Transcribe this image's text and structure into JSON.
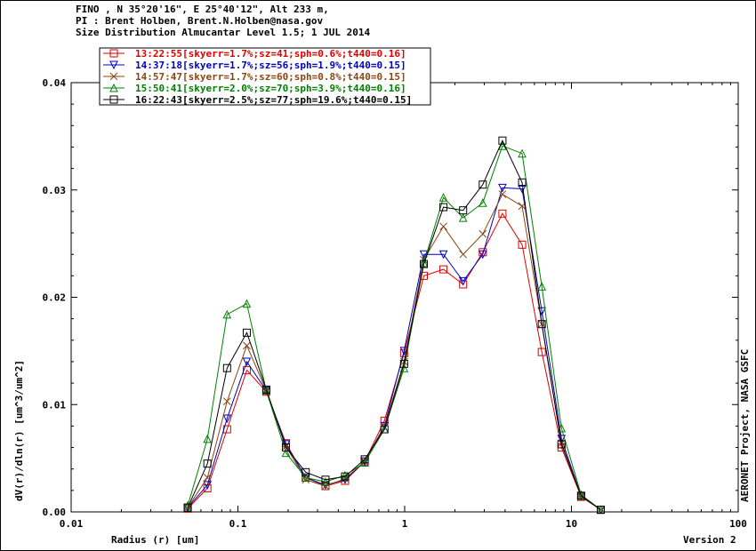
{
  "header": {
    "line1": "FINO , N 35°20'16\", E 25°40'12\", Alt 233 m,",
    "line2": "PI : Brent Holben, Brent.N.Holben@nasa.gov",
    "line3": "Size Distribution Almucantar Level 1.5; 1 JUL 2014"
  },
  "side_credit": "AERONET Project, NASA GSFC",
  "version_label": "Version 2",
  "chart_data": {
    "type": "line",
    "xlabel": "Radius (r) [um]",
    "ylabel": "dV(r)/dln(r) [um^3/um^2]",
    "xscale": "log",
    "xlim": [
      0.01,
      100
    ],
    "ylim": [
      0,
      0.04
    ],
    "grid": false,
    "legend_position": "top-left",
    "x_ticks": [
      {
        "value": 0.01,
        "label": "0.01"
      },
      {
        "value": 0.1,
        "label": "0.1"
      },
      {
        "value": 1,
        "label": "1"
      },
      {
        "value": 10,
        "label": "10"
      },
      {
        "value": 100,
        "label": "100"
      }
    ],
    "y_ticks": [
      {
        "value": 0,
        "label": "0.00"
      },
      {
        "value": 0.01,
        "label": "0.01"
      },
      {
        "value": 0.02,
        "label": "0.02"
      },
      {
        "value": 0.03,
        "label": "0.03"
      },
      {
        "value": 0.04,
        "label": "0.04"
      }
    ],
    "x": [
      0.05,
      0.0656,
      0.0861,
      0.113,
      0.148,
      0.194,
      0.255,
      0.335,
      0.439,
      0.576,
      0.756,
      0.992,
      1.302,
      1.708,
      2.241,
      2.94,
      3.857,
      5.061,
      6.641,
      8.713,
      11.432,
      15.0
    ],
    "series": [
      {
        "name": "13:22:55[skyerr=1.7%;sz=41;sph=0.6%;t440=0.16]",
        "color": "#e00000",
        "marker": "square",
        "values": [
          0.0003,
          0.0022,
          0.0077,
          0.0132,
          0.0112,
          0.0064,
          0.0032,
          0.0024,
          0.0029,
          0.0047,
          0.0085,
          0.0148,
          0.022,
          0.0226,
          0.0212,
          0.0242,
          0.0278,
          0.0249,
          0.0149,
          0.006,
          0.0014,
          0.0002
        ]
      },
      {
        "name": "14:37:18[skyerr=1.7%;sz=56;sph=1.9%;t440=0.15]",
        "color": "#0000c0",
        "marker": "triangle-down",
        "values": [
          0.0004,
          0.0025,
          0.0087,
          0.014,
          0.0113,
          0.0063,
          0.0032,
          0.0025,
          0.003,
          0.0047,
          0.008,
          0.015,
          0.024,
          0.024,
          0.0215,
          0.024,
          0.0302,
          0.0301,
          0.0187,
          0.0068,
          0.0015,
          0.0002
        ]
      },
      {
        "name": "14:57:47[skyerr=1.7%;sz=60;sph=0.8%;t440=0.15]",
        "color": "#8b4513",
        "marker": "x",
        "values": [
          0.0004,
          0.0032,
          0.0103,
          0.0155,
          0.0113,
          0.0061,
          0.003,
          0.0024,
          0.0031,
          0.0047,
          0.0079,
          0.014,
          0.0235,
          0.0266,
          0.024,
          0.0259,
          0.0296,
          0.0285,
          0.0175,
          0.0064,
          0.0015,
          0.0002
        ]
      },
      {
        "name": "15:50:41[skyerr=2.0%;sz=70;sph=3.9%;t440=0.16]",
        "color": "#008000",
        "marker": "triangle-up",
        "values": [
          0.0006,
          0.0068,
          0.0184,
          0.0194,
          0.0113,
          0.0055,
          0.0032,
          0.0028,
          0.0034,
          0.0046,
          0.0077,
          0.0134,
          0.0232,
          0.0293,
          0.0274,
          0.0288,
          0.0341,
          0.0334,
          0.021,
          0.0078,
          0.0016,
          0.0002
        ]
      },
      {
        "name": "16:22:43[skyerr=2.5%;sz=77;sph=19.6%;t440=0.15]",
        "color": "#000000",
        "marker": "square",
        "values": [
          0.0004,
          0.0045,
          0.0134,
          0.0167,
          0.0114,
          0.006,
          0.0037,
          0.003,
          0.0033,
          0.0049,
          0.0077,
          0.0138,
          0.0231,
          0.0284,
          0.0281,
          0.0305,
          0.0346,
          0.0307,
          0.0175,
          0.0063,
          0.0015,
          0.0002
        ]
      }
    ]
  }
}
